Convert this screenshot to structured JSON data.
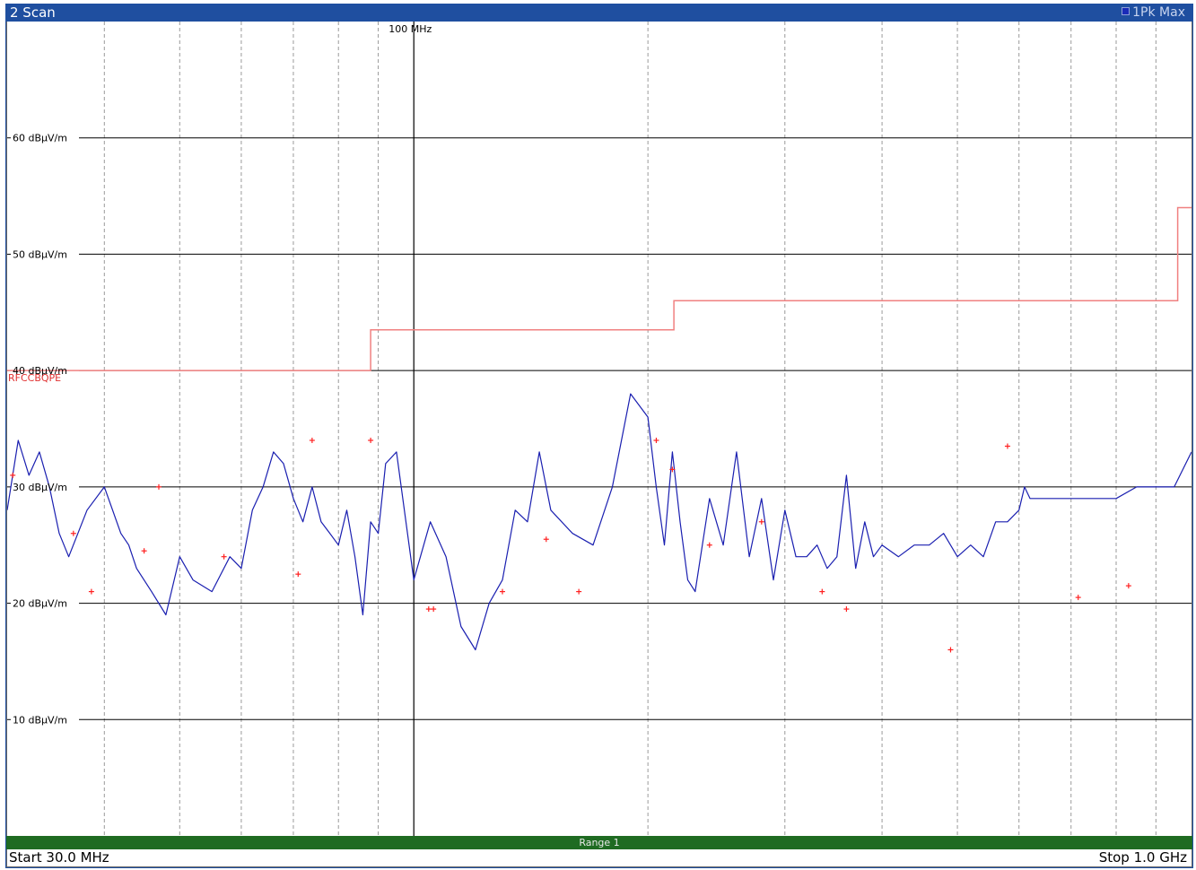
{
  "window": {
    "title": "2 Scan",
    "trace_label": "1Pk Max"
  },
  "footer": {
    "start_label": "Start 30.0 MHz",
    "stop_label": "Stop 1.0 GHz",
    "range_label": "Range 1"
  },
  "colors": {
    "titlebar": "#1f4fa0",
    "trace": "#1a1fb0",
    "limit": "#f08080",
    "markers": "#ff2020",
    "rangebar": "#1f6b22"
  },
  "chart_data": {
    "type": "line",
    "x_scale": "log",
    "xlim_mhz": [
      30,
      1000
    ],
    "ylim": [
      0,
      70
    ],
    "y_unit": "dBµV/m",
    "y_tick_labels": [
      {
        "value": 60,
        "label": "60 dBµV/m"
      },
      {
        "value": 50,
        "label": "50 dBµV/m"
      },
      {
        "value": 40,
        "label": "40 dBµV/m"
      },
      {
        "value": 30,
        "label": "30 dBµV/m"
      },
      {
        "value": 20,
        "label": "20 dBµV/m"
      },
      {
        "value": 10,
        "label": "10 dBµV/m"
      }
    ],
    "x_major_tick": {
      "value": 100,
      "label": "100 MHz"
    },
    "x_minor_ticks_mhz": [
      40,
      50,
      60,
      70,
      80,
      90,
      200,
      300,
      400,
      500,
      600,
      700,
      800,
      900
    ],
    "grid": true,
    "limit_line": {
      "name": "RFCCBQPE",
      "steps": [
        {
          "x": [
            30,
            88
          ],
          "y": 40.0
        },
        {
          "x": [
            88,
            216
          ],
          "y": 43.5
        },
        {
          "x": [
            216,
            960
          ],
          "y": 46.0
        },
        {
          "x": [
            960,
            1000
          ],
          "y": 54.0
        }
      ]
    },
    "series": [
      {
        "name": "1Pk Max",
        "x": [
          30,
          31,
          32,
          33,
          34,
          35,
          36,
          38,
          40,
          42,
          43,
          44,
          46,
          48,
          50,
          52,
          55,
          58,
          60,
          62,
          64,
          66,
          68,
          70,
          72,
          74,
          76,
          78,
          80,
          82,
          84,
          86,
          88,
          90,
          92,
          95,
          100,
          105,
          110,
          115,
          120,
          125,
          130,
          135,
          140,
          145,
          150,
          160,
          170,
          180,
          190,
          200,
          205,
          210,
          215,
          220,
          225,
          230,
          240,
          250,
          260,
          270,
          280,
          290,
          300,
          310,
          320,
          330,
          340,
          350,
          360,
          370,
          380,
          390,
          400,
          420,
          440,
          460,
          480,
          500,
          520,
          540,
          560,
          580,
          600,
          610,
          620,
          640,
          660,
          680,
          700,
          750,
          800,
          850,
          900,
          950,
          1000
        ],
        "y": [
          28,
          34,
          31,
          33,
          30,
          26,
          24,
          28,
          30,
          26,
          25,
          23,
          21,
          19,
          24,
          22,
          21,
          24,
          23,
          28,
          30,
          33,
          32,
          29,
          27,
          30,
          27,
          26,
          25,
          28,
          24,
          19,
          27,
          26,
          32,
          33,
          22,
          27,
          24,
          18,
          16,
          20,
          22,
          28,
          27,
          33,
          28,
          26,
          25,
          30,
          38,
          36,
          30,
          25,
          33,
          27,
          22,
          21,
          29,
          25,
          33,
          24,
          29,
          22,
          28,
          24,
          24,
          25,
          23,
          24,
          31,
          23,
          27,
          24,
          25,
          24,
          25,
          25,
          26,
          24,
          25,
          24,
          27,
          27,
          28,
          30,
          29,
          29,
          29,
          29,
          29,
          29,
          29,
          30,
          30,
          30,
          33
        ]
      }
    ],
    "markers": {
      "x": [
        30.5,
        36.5,
        38.5,
        45,
        47,
        57,
        71,
        74,
        88,
        104.5,
        106,
        130,
        148,
        163,
        205,
        215,
        240,
        280,
        335,
        360,
        490,
        580,
        715,
        830
      ],
      "y": [
        31,
        26,
        21,
        24.5,
        30,
        24,
        22.5,
        34,
        34,
        19.5,
        19.5,
        21,
        25.5,
        21,
        34,
        31.5,
        25,
        27,
        21,
        19.5,
        16,
        33.5,
        20.5,
        21.5
      ]
    }
  }
}
